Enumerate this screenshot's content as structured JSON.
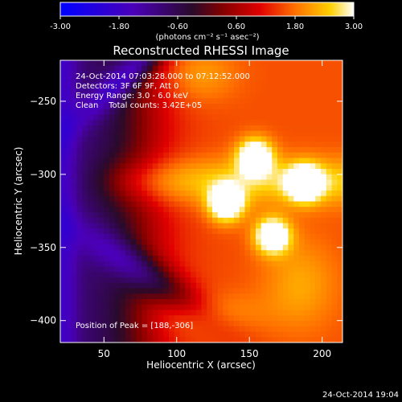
{
  "chart_data": {
    "type": "heatmap",
    "title": "Reconstructed RHESSI Image",
    "xlabel": "Heliocentric X (arcsec)",
    "ylabel": "Heliocentric Y (arcsec)",
    "xlim": [
      20,
      214
    ],
    "ylim": [
      -415,
      -222
    ],
    "x_ticks": [
      50,
      100,
      150,
      200
    ],
    "y_ticks": [
      -250,
      -300,
      -350,
      -400
    ],
    "colorbar": {
      "range": [
        -3.0,
        3.0
      ],
      "ticks": [
        "-3.00",
        "-1.80",
        "-0.60",
        "0.60",
        "1.80",
        "3.00"
      ],
      "unit": "(photons cm⁻² s⁻¹ asec⁻²)",
      "colormap": [
        "#0000ff",
        "#4b00b8",
        "#2a0a2a",
        "#800000",
        "#e00000",
        "#ff7000",
        "#ffd000",
        "#ffffff"
      ]
    },
    "annotations": [
      "24-Oct-2014 07:03:28.000 to 07:12:52.000",
      "Detectors: 3F 6F 9F, Att 0",
      "Energy Range: 3.0 - 6.0 keV",
      "Clean    Total counts: 3.42E+05"
    ],
    "peak_label": "Position of Peak = [188,-306]",
    "peaks": [
      {
        "x": 154,
        "y": -288,
        "value": 3.0
      },
      {
        "x": 188,
        "y": -306,
        "value": 3.0
      },
      {
        "x": 134,
        "y": -320,
        "value": 3.0
      },
      {
        "x": 166,
        "y": -342,
        "value": 3.0
      }
    ]
  },
  "timestamp": "24-Oct-2014 19:04"
}
